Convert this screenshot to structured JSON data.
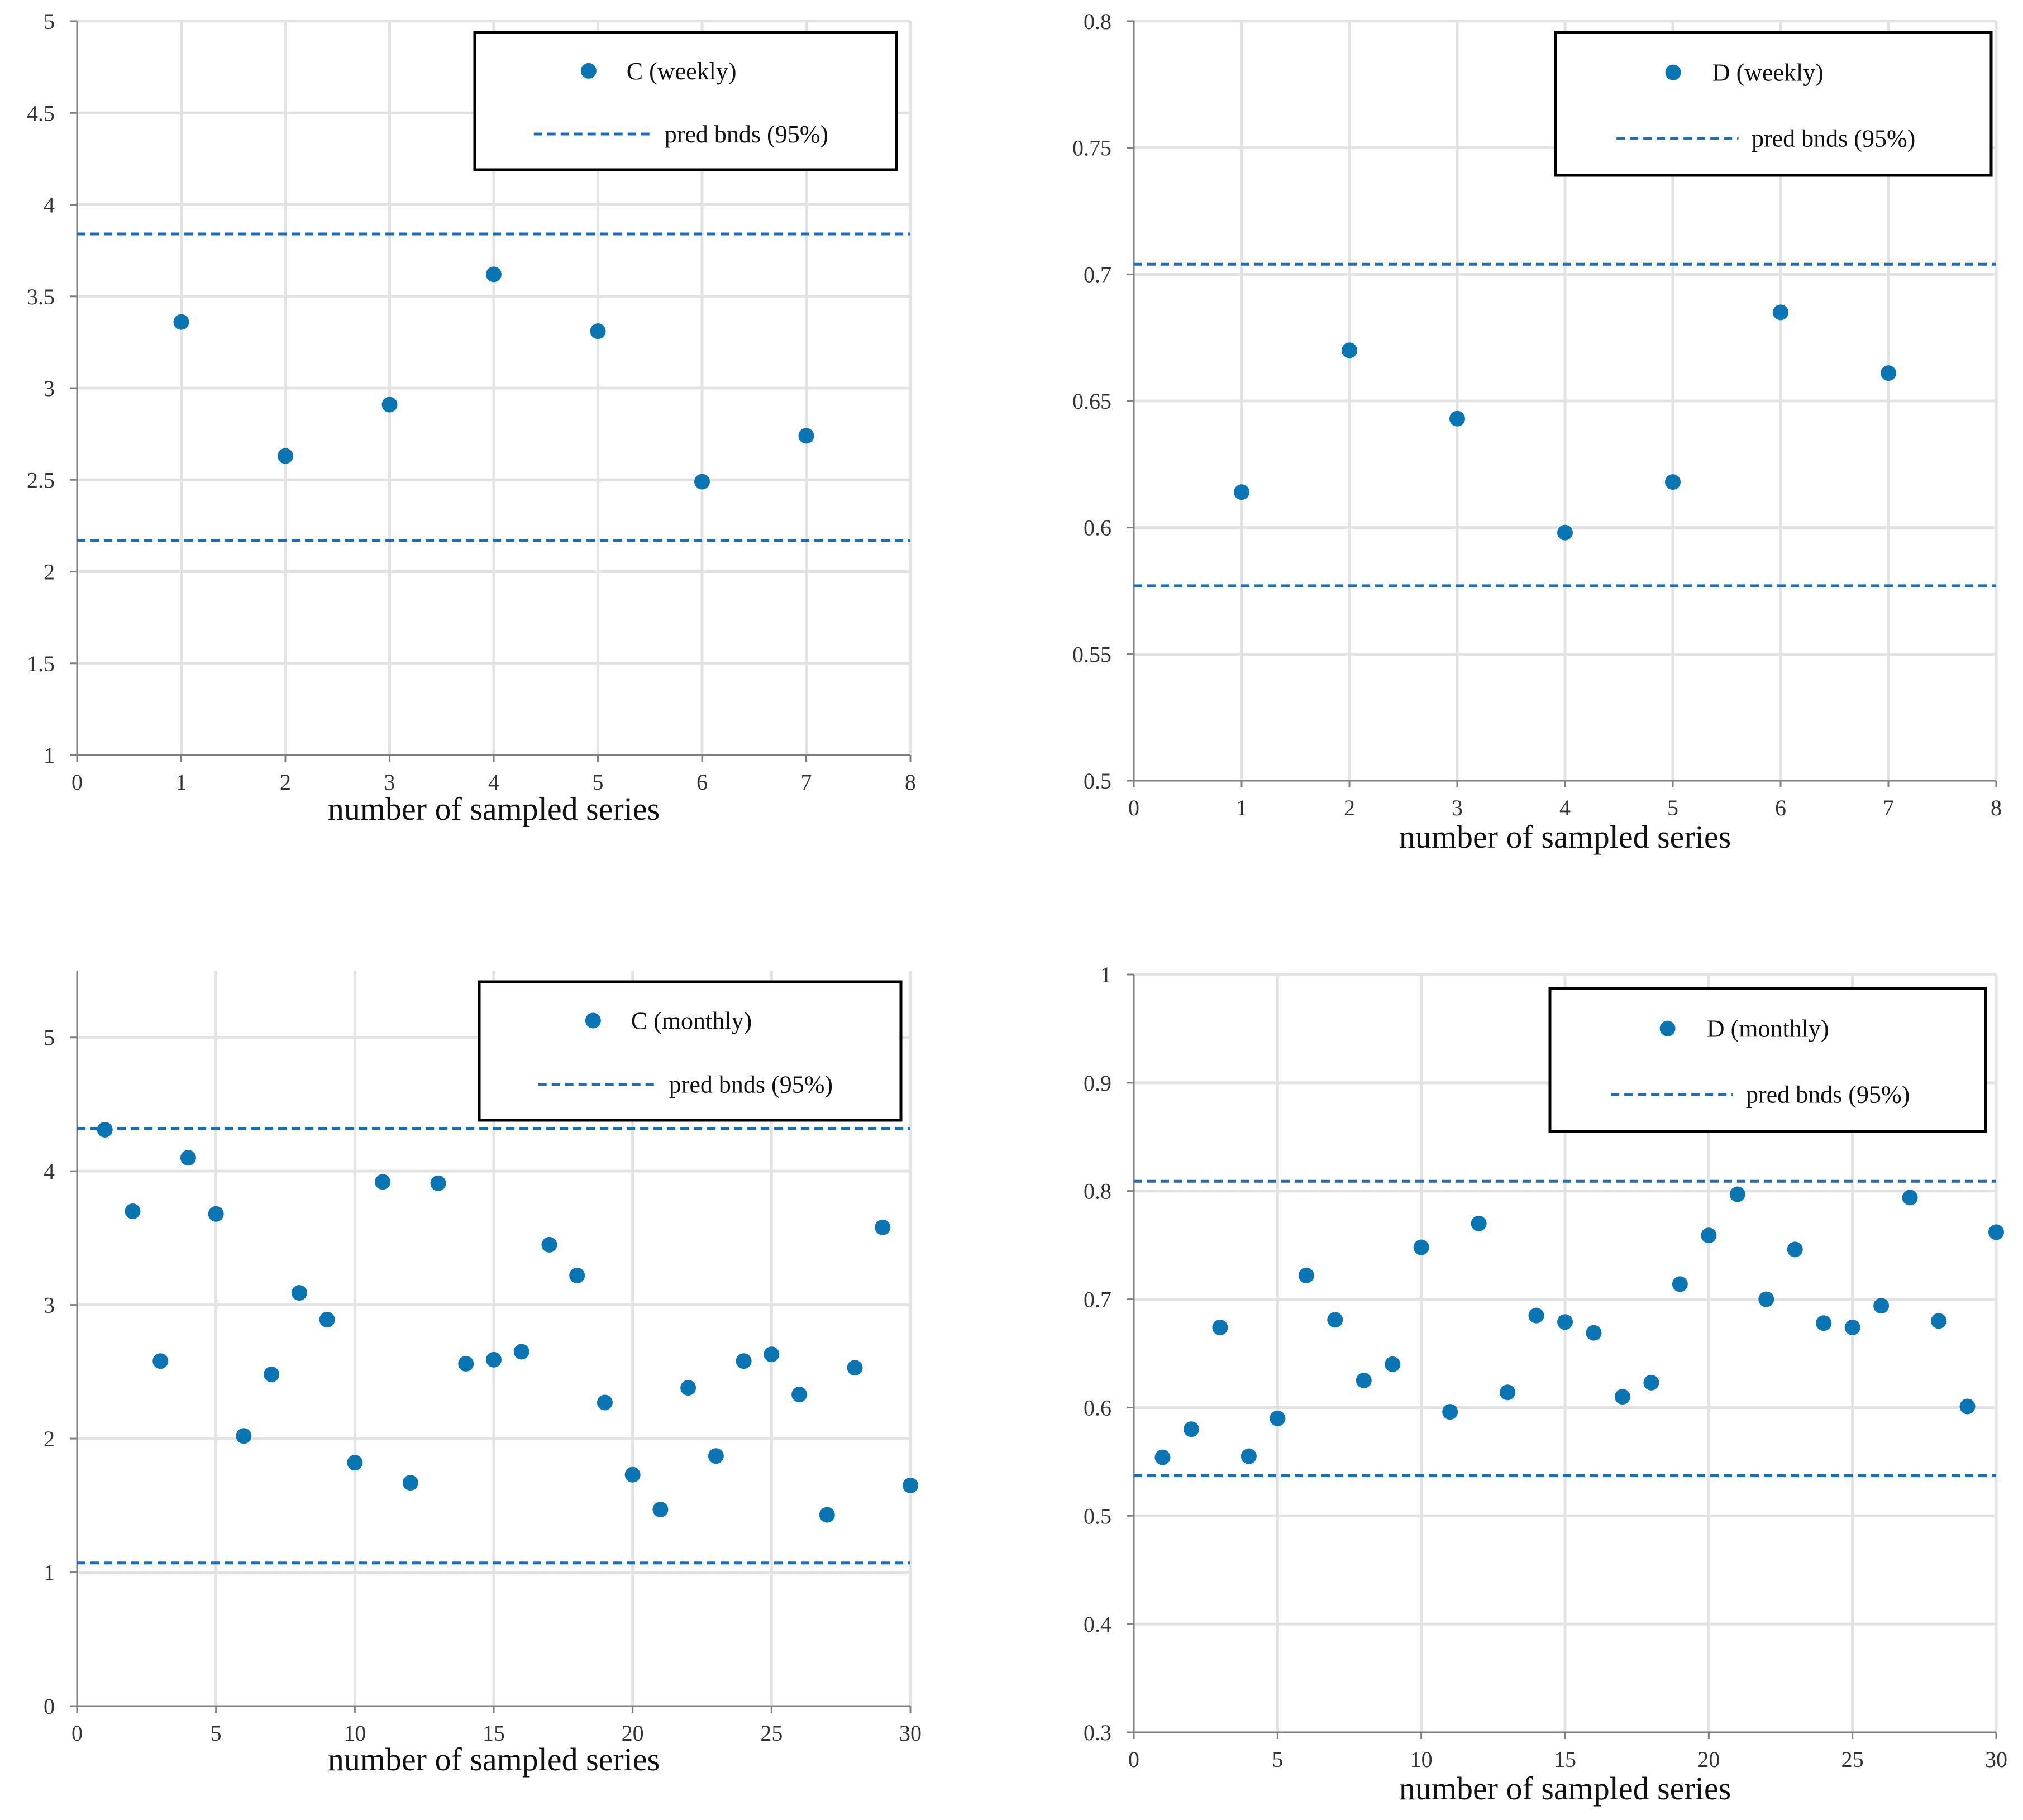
{
  "chart_data": [
    {
      "type": "scatter",
      "panel": "top-left",
      "xlabel": "number of sampled series",
      "ylabel": "",
      "xlim": [
        0,
        8
      ],
      "ylim": [
        1,
        5
      ],
      "xticks": [
        0,
        1,
        2,
        3,
        4,
        5,
        6,
        7,
        8
      ],
      "yticks": [
        1,
        1.5,
        2,
        2.5,
        3,
        3.5,
        4,
        4.5,
        5
      ],
      "grid": true,
      "legend_position": "top-right",
      "series": [
        {
          "name": "C (weekly)",
          "kind": "points",
          "x": [
            1,
            2,
            3,
            4,
            5,
            6,
            7
          ],
          "y": [
            3.36,
            2.63,
            2.91,
            3.62,
            3.31,
            2.49,
            2.74
          ]
        }
      ],
      "bounds": {
        "name": "pred bnds (95%)",
        "kind": "dashed-lines",
        "values": [
          3.84,
          2.17
        ]
      }
    },
    {
      "type": "scatter",
      "panel": "top-right",
      "xlabel": "number of sampled series",
      "ylabel": "",
      "xlim": [
        0,
        8
      ],
      "ylim": [
        0.5,
        0.8
      ],
      "xticks": [
        0,
        1,
        2,
        3,
        4,
        5,
        6,
        7,
        8
      ],
      "yticks": [
        0.5,
        0.55,
        0.6,
        0.65,
        0.7,
        0.75,
        0.8
      ],
      "grid": true,
      "legend_position": "top-right",
      "series": [
        {
          "name": "D (weekly)",
          "kind": "points",
          "x": [
            1,
            2,
            3,
            4,
            5,
            6,
            7
          ],
          "y": [
            0.614,
            0.67,
            0.643,
            0.598,
            0.618,
            0.685,
            0.661
          ]
        }
      ],
      "bounds": {
        "name": "pred bnds (95%)",
        "kind": "dashed-lines",
        "values": [
          0.704,
          0.577
        ]
      }
    },
    {
      "type": "scatter",
      "panel": "bottom-left",
      "xlabel": "number of sampled series",
      "ylabel": "",
      "xlim": [
        0,
        30
      ],
      "ylim": [
        0,
        5.5
      ],
      "xticks": [
        0,
        5,
        10,
        15,
        20,
        25,
        30
      ],
      "yticks": [
        0,
        1,
        2,
        3,
        4,
        5
      ],
      "grid": true,
      "legend_position": "top-right",
      "series": [
        {
          "name": "C (monthly)",
          "kind": "points",
          "x": [
            1,
            2,
            3,
            4,
            5,
            6,
            7,
            8,
            9,
            10,
            11,
            12,
            13,
            14,
            15,
            16,
            17,
            18,
            19,
            20,
            21,
            22,
            23,
            24,
            25,
            26,
            27,
            28,
            29,
            30
          ],
          "y": [
            4.31,
            3.7,
            2.58,
            4.1,
            3.68,
            2.02,
            2.48,
            3.09,
            2.89,
            1.82,
            3.92,
            1.67,
            3.91,
            2.56,
            2.59,
            2.65,
            3.45,
            3.22,
            2.27,
            1.73,
            1.47,
            2.38,
            1.87,
            2.58,
            2.63,
            2.33,
            1.43,
            2.53,
            3.58,
            1.65
          ]
        }
      ],
      "bounds": {
        "name": "pred bnds (95%)",
        "kind": "dashed-lines",
        "values": [
          4.32,
          1.07
        ]
      }
    },
    {
      "type": "scatter",
      "panel": "bottom-right",
      "xlabel": "number of sampled series",
      "ylabel": "",
      "xlim": [
        0,
        30
      ],
      "ylim": [
        0.3,
        1
      ],
      "xticks": [
        0,
        5,
        10,
        15,
        20,
        25,
        30
      ],
      "yticks": [
        0.3,
        0.4,
        0.5,
        0.6,
        0.7,
        0.8,
        0.9,
        1
      ],
      "grid": true,
      "legend_position": "top-right",
      "series": [
        {
          "name": "D (monthly)",
          "kind": "points",
          "x": [
            1,
            2,
            3,
            4,
            5,
            6,
            7,
            8,
            9,
            10,
            11,
            12,
            13,
            14,
            15,
            16,
            17,
            18,
            19,
            20,
            21,
            22,
            23,
            24,
            25,
            26,
            27,
            28,
            29,
            30
          ],
          "y": [
            0.554,
            0.58,
            0.674,
            0.555,
            0.59,
            0.722,
            0.681,
            0.625,
            0.64,
            0.748,
            0.596,
            0.77,
            0.614,
            0.685,
            0.679,
            0.669,
            0.61,
            0.623,
            0.714,
            0.759,
            0.797,
            0.7,
            0.746,
            0.678,
            0.674,
            0.694,
            0.794,
            0.68,
            0.601,
            0.762
          ]
        }
      ],
      "bounds": {
        "name": "pred bnds (95%)",
        "kind": "dashed-lines",
        "values": [
          0.809,
          0.537
        ]
      }
    }
  ],
  "colors": {
    "marker": "#0a75b3",
    "bound_line": "#1a6fbd",
    "grid": "#e3e3e3",
    "axis": "#7f7f7f"
  }
}
